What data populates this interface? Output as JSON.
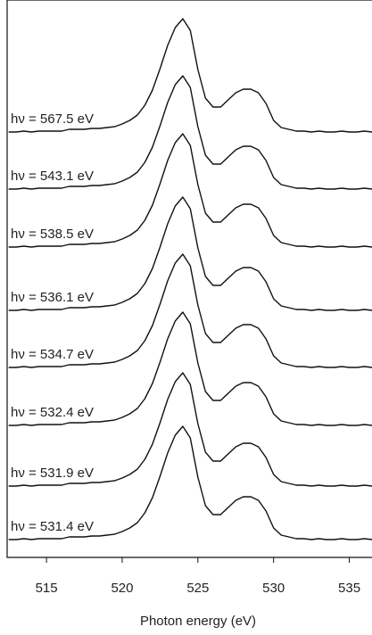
{
  "chart_data": {
    "type": "line",
    "x_label": "Photon energy (eV)",
    "xlim": [
      512.4,
      536.5
    ],
    "xticks": [
      515,
      520,
      525,
      530,
      535
    ],
    "ylim": [
      0,
      625
    ],
    "x": [
      512.5,
      513,
      513.5,
      514,
      514.5,
      515,
      515.5,
      516,
      516.5,
      517,
      517.5,
      518,
      518.5,
      519,
      519.5,
      520,
      520.5,
      521,
      521.5,
      522,
      522.5,
      523,
      523.5,
      524,
      524.5,
      525,
      525.5,
      526,
      526.5,
      527,
      527.5,
      528,
      528.5,
      529,
      529.5,
      530,
      530.5,
      531,
      531.5,
      532,
      532.5,
      533,
      533.5,
      534,
      534.5,
      535,
      535.5,
      536,
      536.5
    ],
    "series": [
      {
        "name": "hν = 567.5 eV",
        "color": "#111111",
        "values": [
          477,
          477,
          478,
          477,
          478,
          478,
          478,
          478,
          480,
          480,
          480,
          481,
          481,
          482,
          483,
          486,
          490,
          496,
          507,
          524,
          548,
          574,
          594,
          604,
          591,
          547,
          515,
          505,
          505,
          513,
          521,
          525,
          525,
          521,
          509,
          490,
          482,
          480,
          478,
          478,
          477,
          478,
          477,
          477,
          478,
          477,
          477,
          478,
          477
        ]
      },
      {
        "name": "hν = 543.1 eV",
        "color": "#111111",
        "values": [
          413,
          413,
          414,
          413,
          414,
          414,
          414,
          414,
          416,
          416,
          416,
          417,
          417,
          418,
          419,
          422,
          426,
          432,
          443,
          460,
          484,
          510,
          530,
          540,
          527,
          483,
          451,
          441,
          441,
          449,
          457,
          461,
          461,
          457,
          445,
          426,
          418,
          416,
          414,
          414,
          413,
          414,
          413,
          413,
          414,
          413,
          413,
          414,
          413
        ]
      },
      {
        "name": "hν = 538.5 eV",
        "color": "#111111",
        "values": [
          348,
          348,
          349,
          348,
          349,
          349,
          349,
          349,
          351,
          351,
          351,
          352,
          352,
          353,
          354,
          357,
          361,
          367,
          378,
          395,
          419,
          445,
          465,
          475,
          462,
          418,
          386,
          376,
          376,
          384,
          392,
          396,
          396,
          392,
          380,
          361,
          353,
          351,
          349,
          349,
          348,
          349,
          348,
          348,
          349,
          348,
          348,
          349,
          348
        ]
      },
      {
        "name": "hν = 536.1 eV",
        "color": "#111111",
        "values": [
          277,
          277,
          278,
          277,
          278,
          278,
          278,
          278,
          280,
          280,
          280,
          281,
          281,
          282,
          283,
          286,
          290,
          296,
          307,
          324,
          348,
          374,
          394,
          404,
          391,
          347,
          315,
          305,
          305,
          313,
          321,
          325,
          325,
          321,
          309,
          290,
          282,
          280,
          278,
          278,
          277,
          278,
          277,
          277,
          278,
          277,
          277,
          278,
          277
        ]
      },
      {
        "name": "hν = 534.7 eV",
        "color": "#111111",
        "values": [
          213,
          213,
          214,
          213,
          214,
          214,
          214,
          214,
          216,
          216,
          216,
          217,
          217,
          218,
          219,
          222,
          226,
          232,
          243,
          260,
          284,
          310,
          330,
          340,
          327,
          283,
          251,
          241,
          241,
          249,
          257,
          261,
          261,
          257,
          245,
          226,
          218,
          216,
          214,
          214,
          213,
          214,
          213,
          213,
          214,
          213,
          213,
          214,
          213
        ]
      },
      {
        "name": "hν = 532.4 eV",
        "color": "#111111",
        "values": [
          148,
          148,
          149,
          148,
          149,
          149,
          149,
          149,
          151,
          151,
          151,
          152,
          152,
          153,
          154,
          157,
          161,
          167,
          178,
          195,
          219,
          245,
          265,
          275,
          262,
          218,
          186,
          176,
          176,
          184,
          192,
          196,
          196,
          192,
          180,
          161,
          153,
          151,
          149,
          149,
          148,
          149,
          148,
          148,
          149,
          148,
          148,
          149,
          148
        ]
      },
      {
        "name": "hν = 531.9 eV",
        "color": "#111111",
        "values": [
          80,
          80,
          81,
          80,
          81,
          81,
          81,
          81,
          83,
          83,
          83,
          84,
          84,
          85,
          86,
          89,
          93,
          99,
          110,
          127,
          151,
          177,
          197,
          207,
          194,
          150,
          118,
          108,
          108,
          116,
          124,
          128,
          128,
          124,
          112,
          93,
          85,
          83,
          81,
          81,
          80,
          81,
          80,
          80,
          81,
          80,
          80,
          81,
          80
        ]
      },
      {
        "name": "hν = 531.4 eV",
        "color": "#111111",
        "values": [
          20,
          20,
          21,
          20,
          21,
          21,
          21,
          21,
          23,
          23,
          23,
          24,
          24,
          25,
          26,
          29,
          33,
          39,
          50,
          67,
          91,
          117,
          137,
          147,
          134,
          90,
          58,
          48,
          48,
          56,
          64,
          68,
          68,
          64,
          52,
          33,
          25,
          23,
          21,
          21,
          20,
          21,
          20,
          20,
          21,
          20,
          20,
          21,
          20
        ]
      }
    ]
  }
}
